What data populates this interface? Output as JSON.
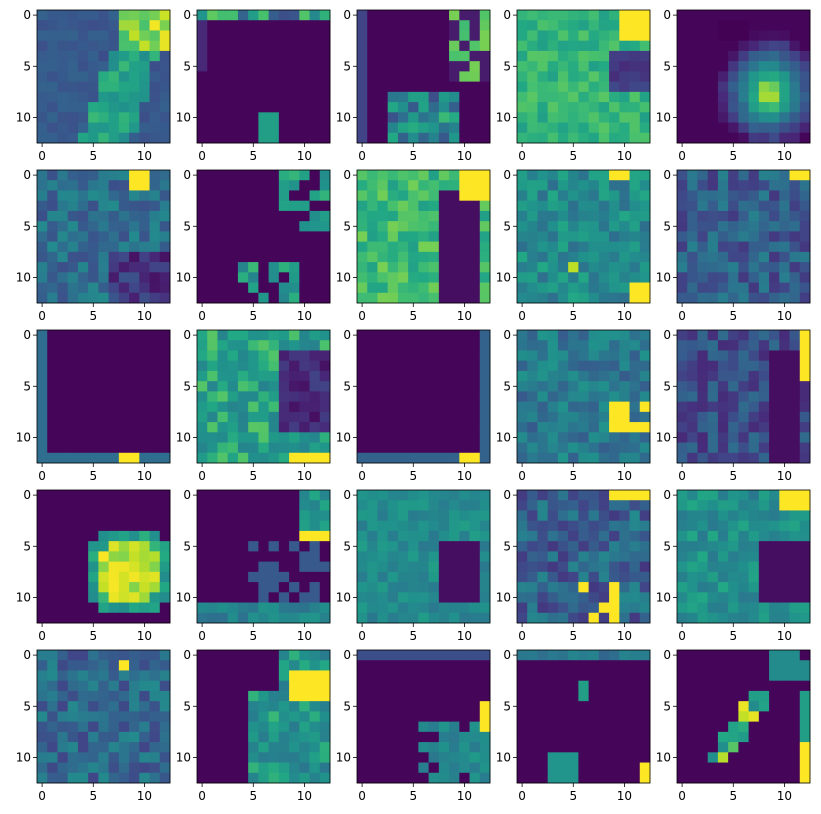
{
  "chart_data": {
    "type": "heatmap",
    "colormap": "viridis",
    "layout": {
      "rows": 5,
      "cols": 5
    },
    "matrix_size": [
      13,
      13
    ],
    "value_range": [
      0,
      1
    ],
    "x_ticks": [
      0,
      5,
      10
    ],
    "y_ticks": [
      0,
      5,
      10
    ],
    "x_tick_labels": [
      "0",
      "5",
      "10"
    ],
    "y_tick_labels": [
      "0",
      "5",
      "10"
    ],
    "xlim": [
      -0.5,
      12.5
    ],
    "ylim": [
      12.5,
      -0.5
    ],
    "grid": false,
    "title": "",
    "xlabel": "",
    "ylabel": "",
    "panels": [
      {
        "description": "bright region upper-right column 10-11, green diagonal band toward lower-middle"
      },
      {
        "description": "mostly dark, noisy top edge with yellow at col 5"
      },
      {
        "description": "mostly dark, right column features"
      },
      {
        "description": "mostly green, yellow upper-right"
      },
      {
        "description": "dark background, bright blob center-right"
      },
      {
        "description": "blue-teal field, yellow upper-right"
      },
      {
        "description": "dark, sparse teal features"
      },
      {
        "description": "green field with dark diagonal gap on right"
      },
      {
        "description": "teal-green field, yellow top and bottom-right"
      },
      {
        "description": "blue field, yellow at top-right edge"
      },
      {
        "description": "almost all dark, yellow bottom center"
      },
      {
        "description": "green-teal field, dark right region, yellow bottom-right"
      },
      {
        "description": "almost all dark, yellow bottom-right"
      },
      {
        "description": "teal field, yellow right column lower"
      },
      {
        "description": "purple-blue field, yellow right column"
      },
      {
        "description": "dark background, yellow-green blob center"
      },
      {
        "description": "dark, teal right features, yellow right"
      },
      {
        "description": "teal field with dark patch right"
      },
      {
        "description": "blue-purple field, yellow top-right and bottom"
      },
      {
        "description": "teal field, yellow top-right, dark right patch"
      },
      {
        "description": "blue-teal noisy field, yellow top-right"
      },
      {
        "description": "dark left, green-yellow right band"
      },
      {
        "description": "dark, teal right column with yellow"
      },
      {
        "description": "dark, sparse teal blocks, yellow bottom-right"
      },
      {
        "description": "dark, diagonal teal/yellow line, yellow right edge"
      }
    ]
  }
}
